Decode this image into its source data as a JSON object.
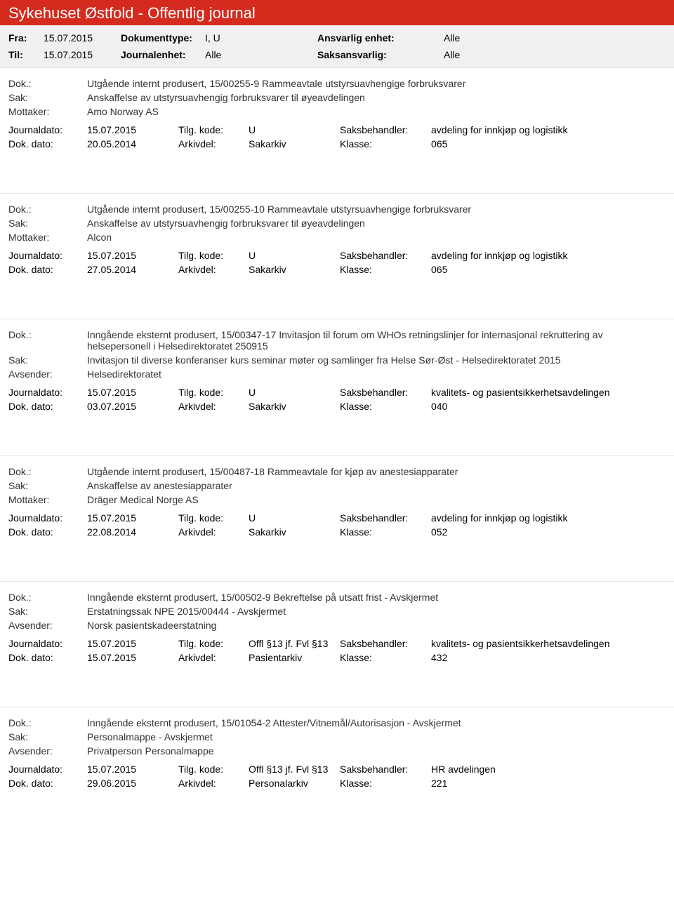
{
  "header": {
    "title": "Sykehuset Østfold - Offentlig journal"
  },
  "filter": {
    "fra_label": "Fra:",
    "fra_value": "15.07.2015",
    "til_label": "Til:",
    "til_value": "15.07.2015",
    "doktype_label": "Dokumenttype:",
    "doktype_value": "I, U",
    "journalenhet_label": "Journalenhet:",
    "journalenhet_value": "Alle",
    "ansvarlig_label": "Ansvarlig enhet:",
    "ansvarlig_value": "Alle",
    "saksansvarlig_label": "Saksansvarlig:",
    "saksansvarlig_value": "Alle"
  },
  "labels": {
    "dok": "Dok.:",
    "sak": "Sak:",
    "mottaker": "Mottaker:",
    "avsender": "Avsender:",
    "journaldato": "Journaldato:",
    "tilgkode": "Tilg. kode:",
    "saksbehandler": "Saksbehandler:",
    "dokdato": "Dok. dato:",
    "arkivdel": "Arkivdel:",
    "klasse": "Klasse:"
  },
  "entries": [
    {
      "dok": "Utgående internt produsert, 15/00255-9 Rammeavtale utstyrsuavhengige forbruksvarer",
      "sak": "Anskaffelse av utstyrsuavhengig forbruksvarer til øyeavdelingen",
      "party_label": "Mottaker:",
      "party": "Amo Norway AS",
      "journaldato": "15.07.2015",
      "tilgkode": "U",
      "saksbehandler": "avdeling for innkjøp og logistikk",
      "dokdato": "20.05.2014",
      "arkivdel": "Sakarkiv",
      "klasse": "065"
    },
    {
      "dok": "Utgående internt produsert, 15/00255-10 Rammeavtale utstyrsuavhengige forbruksvarer",
      "sak": "Anskaffelse av utstyrsuavhengig forbruksvarer til øyeavdelingen",
      "party_label": "Mottaker:",
      "party": "Alcon",
      "journaldato": "15.07.2015",
      "tilgkode": "U",
      "saksbehandler": "avdeling for innkjøp og logistikk",
      "dokdato": "27.05.2014",
      "arkivdel": "Sakarkiv",
      "klasse": "065"
    },
    {
      "dok": "Inngående eksternt produsert, 15/00347-17 Invitasjon til forum om WHOs retningslinjer for internasjonal rekruttering av helsepersonell i Helsedirektoratet 250915",
      "sak": "Invitasjon til diverse konferanser kurs seminar møter og samlinger fra Helse Sør-Øst - Helsedirektoratet 2015",
      "party_label": "Avsender:",
      "party": "Helsedirektoratet",
      "journaldato": "15.07.2015",
      "tilgkode": "U",
      "saksbehandler": "kvalitets- og pasientsikkerhetsavdelingen",
      "dokdato": "03.07.2015",
      "arkivdel": "Sakarkiv",
      "klasse": "040"
    },
    {
      "dok": "Utgående internt produsert, 15/00487-18 Rammeavtale for kjøp av anestesiapparater",
      "sak": "Anskaffelse av anestesiapparater",
      "party_label": "Mottaker:",
      "party": "Dräger Medical Norge AS",
      "journaldato": "15.07.2015",
      "tilgkode": "U",
      "saksbehandler": "avdeling for innkjøp og logistikk",
      "dokdato": "22.08.2014",
      "arkivdel": "Sakarkiv",
      "klasse": "052"
    },
    {
      "dok": "Inngående eksternt produsert, 15/00502-9 Bekreftelse på utsatt frist - Avskjermet",
      "sak": "Erstatningssak NPE 2015/00444 - Avskjermet",
      "party_label": "Avsender:",
      "party": "Norsk pasientskadeerstatning",
      "journaldato": "15.07.2015",
      "tilgkode": "Offl §13 jf. Fvl §13",
      "saksbehandler": "kvalitets- og pasientsikkerhetsavdelingen",
      "dokdato": "15.07.2015",
      "arkivdel": "Pasientarkiv",
      "klasse": "432"
    },
    {
      "dok": "Inngående eksternt produsert, 15/01054-2 Attester/Vitnemål/Autorisasjon - Avskjermet",
      "sak": "Personalmappe - Avskjermet",
      "party_label": "Avsender:",
      "party": "Privatperson Personalmappe",
      "journaldato": "15.07.2015",
      "tilgkode": "Offl §13 jf. Fvl §13",
      "saksbehandler": "HR avdelingen",
      "dokdato": "29.06.2015",
      "arkivdel": "Personalarkiv",
      "klasse": "221"
    }
  ]
}
